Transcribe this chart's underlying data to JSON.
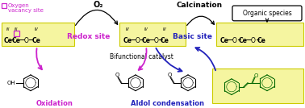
{
  "fig_width": 3.78,
  "fig_height": 1.34,
  "dpi": 100,
  "bg_color": "#ffffff",
  "yellow_bg": "#f5f5a0",
  "redox_text": "Redox site",
  "basic_text": "Basic site",
  "bifunctional_text": "Bifunctional catalyst",
  "o2_text": "O₂",
  "calcination_text": "Calcination",
  "oxidation_text": "Oxidation",
  "aldol_text": "Aldol condensation",
  "organic_text": "Organic species",
  "oxygen_vacancy_text1": "Oxygen",
  "oxygen_vacancy_text2": "vacancy site",
  "purple": "#cc22cc",
  "blue": "#2222bb",
  "dark": "#111111",
  "green": "#006600"
}
